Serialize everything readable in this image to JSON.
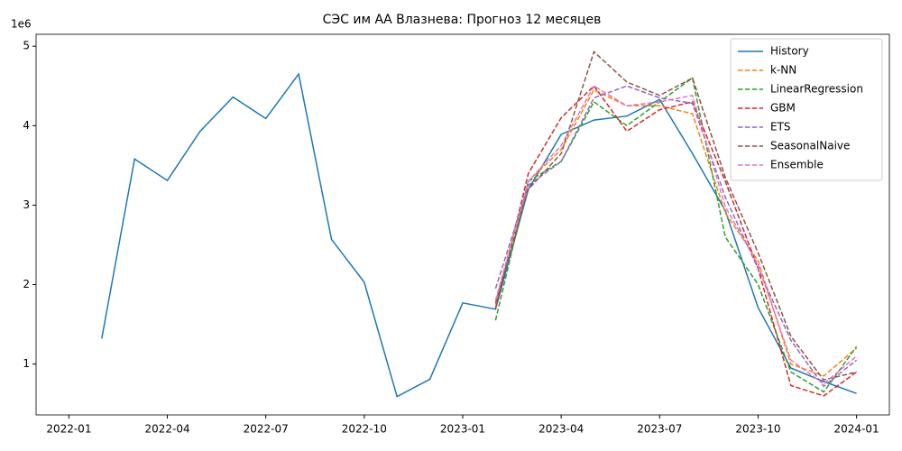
{
  "chart_data": {
    "type": "line",
    "title": "СЭС им АА Влазнева: Прогноз 12 месяцев",
    "x": [
      "2022-02",
      "2022-03",
      "2022-04",
      "2022-05",
      "2022-06",
      "2022-07",
      "2022-08",
      "2022-09",
      "2022-10",
      "2022-11",
      "2022-12",
      "2023-01",
      "2023-02",
      "2023-03",
      "2023-04",
      "2023-05",
      "2023-06",
      "2023-07",
      "2023-08",
      "2023-09",
      "2023-10",
      "2023-11",
      "2023-12",
      "2024-01"
    ],
    "series": [
      {
        "name": "History",
        "color": "#1f77b4",
        "linestyle": "solid",
        "values": [
          1320000,
          3580000,
          3310000,
          3930000,
          4360000,
          4090000,
          4650000,
          2570000,
          2030000,
          590000,
          810000,
          1770000,
          1690000,
          3200000,
          3890000,
          4070000,
          4120000,
          4330000,
          3650000,
          2930000,
          1710000,
          950000,
          780000,
          630000
        ]
      },
      {
        "name": "k-NN",
        "color": "#ff7f0e",
        "linestyle": "dashed",
        "values": [
          null,
          null,
          null,
          null,
          null,
          null,
          null,
          null,
          null,
          null,
          null,
          null,
          1750000,
          3300000,
          3700000,
          4450000,
          4250000,
          4250000,
          4150000,
          2900000,
          2300000,
          1000000,
          850000,
          1200000
        ]
      },
      {
        "name": "LinearRegression",
        "color": "#2ca02c",
        "linestyle": "dashed",
        "values": [
          null,
          null,
          null,
          null,
          null,
          null,
          null,
          null,
          null,
          null,
          null,
          null,
          1550000,
          3300000,
          3550000,
          4300000,
          4000000,
          4300000,
          4600000,
          2600000,
          2000000,
          900000,
          650000,
          1220000
        ]
      },
      {
        "name": "GBM",
        "color": "#d62728",
        "linestyle": "dashed",
        "values": [
          null,
          null,
          null,
          null,
          null,
          null,
          null,
          null,
          null,
          null,
          null,
          null,
          1700000,
          3400000,
          4100000,
          4500000,
          3930000,
          4200000,
          4300000,
          3300000,
          2200000,
          730000,
          600000,
          900000
        ]
      },
      {
        "name": "ETS",
        "color": "#9467bd",
        "linestyle": "dashed",
        "values": [
          null,
          null,
          null,
          null,
          null,
          null,
          null,
          null,
          null,
          null,
          null,
          null,
          1950000,
          3250000,
          3550000,
          4350000,
          4500000,
          4350000,
          4280000,
          3100000,
          2200000,
          1300000,
          720000,
          1050000
        ]
      },
      {
        "name": "SeasonalNaive",
        "color": "#8c564b",
        "linestyle": "dashed",
        "values": [
          null,
          null,
          null,
          null,
          null,
          null,
          null,
          null,
          null,
          null,
          null,
          null,
          1770000,
          3200000,
          3650000,
          4930000,
          4550000,
          4380000,
          4600000,
          3350000,
          2400000,
          1350000,
          800000,
          900000
        ]
      },
      {
        "name": "Ensemble",
        "color": "#e377c2",
        "linestyle": "dashed",
        "values": [
          null,
          null,
          null,
          null,
          null,
          null,
          null,
          null,
          null,
          null,
          null,
          null,
          1800000,
          3300000,
          3750000,
          4500000,
          4250000,
          4300000,
          4380000,
          2980000,
          2250000,
          1050000,
          750000,
          1100000
        ]
      }
    ],
    "xlim": [
      "2021-12",
      "2024-02"
    ],
    "xticks": [
      "2022-01",
      "2022-04",
      "2022-07",
      "2022-10",
      "2023-01",
      "2023-04",
      "2023-07",
      "2023-10",
      "2024-01"
    ],
    "ylim": [
      360000,
      5150000
    ],
    "yticks": [
      {
        "value": 1000000,
        "label": "1"
      },
      {
        "value": 2000000,
        "label": "2"
      },
      {
        "value": 3000000,
        "label": "3"
      },
      {
        "value": 4000000,
        "label": "4"
      },
      {
        "value": 5000000,
        "label": "5"
      }
    ],
    "y_offset_label": "1e6",
    "legend": "upper right",
    "grid": false
  }
}
